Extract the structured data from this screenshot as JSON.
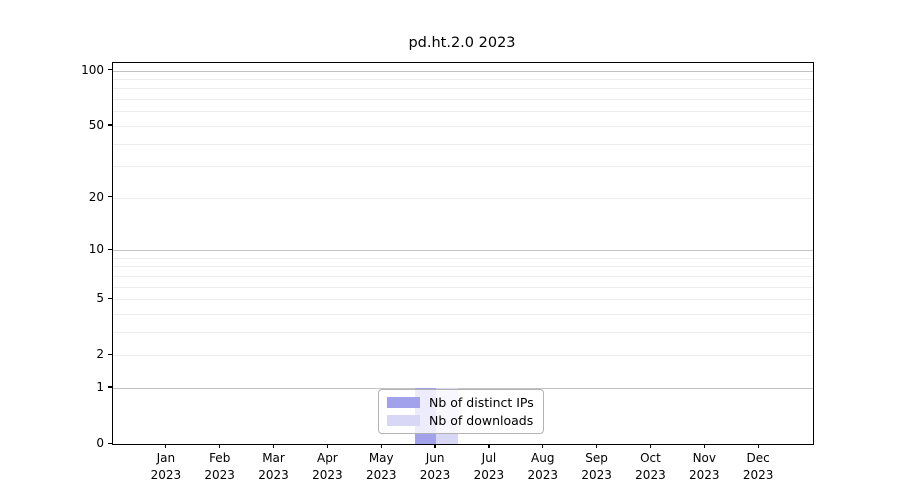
{
  "title": "pd.ht.2.0 2023",
  "chart_data": {
    "type": "bar",
    "title": "pd.ht.2.0 2023",
    "categories": [
      "Jan",
      "Feb",
      "Mar",
      "Apr",
      "May",
      "Jun",
      "Jul",
      "Aug",
      "Sep",
      "Oct",
      "Nov",
      "Dec"
    ],
    "year_label": "2023",
    "series": [
      {
        "name": "Nb of distinct IPs",
        "color": "#a2a2ec",
        "values": [
          0,
          0,
          0,
          0,
          0,
          1,
          0,
          0,
          0,
          0,
          0,
          0
        ]
      },
      {
        "name": "Nb of downloads",
        "color": "#d8d8f6",
        "values": [
          0,
          0,
          0,
          0,
          0,
          1,
          0,
          0,
          0,
          0,
          0,
          0
        ]
      }
    ],
    "xlabel": "",
    "ylabel": "",
    "y_axis": {
      "scale": "log1p",
      "range": [
        0,
        110
      ],
      "ticks": [
        0,
        1,
        2,
        5,
        10,
        20,
        50,
        100
      ],
      "major_gridlines": [
        1,
        10,
        100
      ],
      "minor_gridlines": [
        2,
        3,
        4,
        5,
        6,
        7,
        8,
        9,
        20,
        30,
        40,
        50,
        60,
        70,
        80,
        90
      ]
    },
    "grid": true,
    "legend_position": "lower center"
  },
  "colors": {
    "major_grid": "#c3c3c3",
    "minor_grid": "#ededed",
    "axis": "#000000",
    "legend_border": "#b3b3b3"
  }
}
